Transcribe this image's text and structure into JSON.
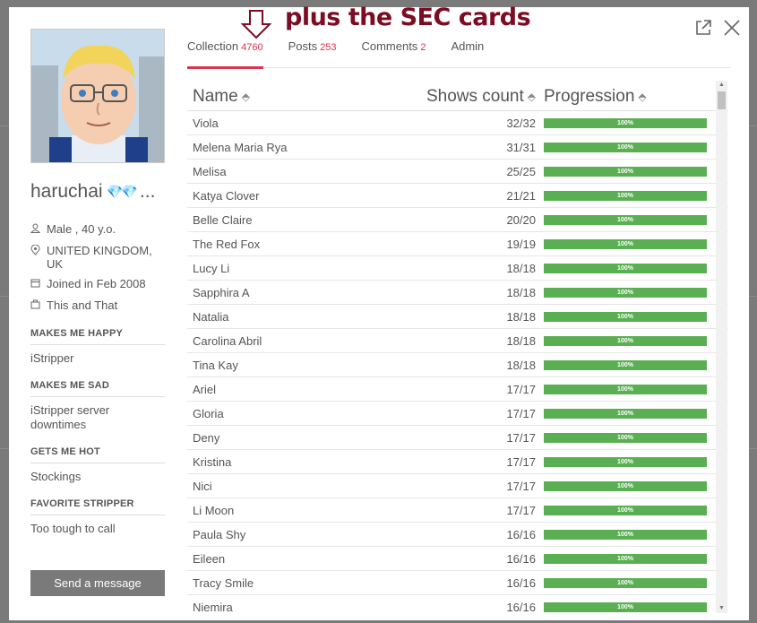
{
  "annotation": {
    "text": "plus the SEC cards"
  },
  "profile": {
    "username": "haruchai",
    "badges": "💎💎",
    "ellipsis": "...",
    "gender_age": "Male , 40 y.o.",
    "location": "UNITED KINGDOM, UK",
    "joined": "Joined in Feb 2008",
    "occupation": "This and That",
    "sections": [
      {
        "title": "MAKES ME HAPPY",
        "value": "iStripper"
      },
      {
        "title": "MAKES ME SAD",
        "value": "iStripper server downtimes"
      },
      {
        "title": "GETS ME HOT",
        "value": "Stockings"
      },
      {
        "title": "FAVORITE STRIPPER",
        "value": "Too tough to call"
      }
    ],
    "send_label": "Send a message"
  },
  "tabs": [
    {
      "label": "Collection",
      "count": "4760"
    },
    {
      "label": "Posts",
      "count": "253"
    },
    {
      "label": "Comments",
      "count": "2"
    },
    {
      "label": "Admin",
      "count": ""
    }
  ],
  "table": {
    "headers": {
      "name": "Name",
      "shows": "Shows count",
      "progression": "Progression"
    },
    "rows": [
      {
        "name": "Viola",
        "shows": "32/32",
        "progress": 100,
        "label": "100%"
      },
      {
        "name": "Melena Maria Rya",
        "shows": "31/31",
        "progress": 100,
        "label": "100%"
      },
      {
        "name": "Melisa",
        "shows": "25/25",
        "progress": 100,
        "label": "100%"
      },
      {
        "name": "Katya Clover",
        "shows": "21/21",
        "progress": 100,
        "label": "100%"
      },
      {
        "name": "Belle Claire",
        "shows": "20/20",
        "progress": 100,
        "label": "100%"
      },
      {
        "name": "The Red Fox",
        "shows": "19/19",
        "progress": 100,
        "label": "100%"
      },
      {
        "name": "Lucy Li",
        "shows": "18/18",
        "progress": 100,
        "label": "100%"
      },
      {
        "name": "Sapphira A",
        "shows": "18/18",
        "progress": 100,
        "label": "100%"
      },
      {
        "name": "Natalia",
        "shows": "18/18",
        "progress": 100,
        "label": "100%"
      },
      {
        "name": "Carolina Abril",
        "shows": "18/18",
        "progress": 100,
        "label": "100%"
      },
      {
        "name": "Tina Kay",
        "shows": "18/18",
        "progress": 100,
        "label": "100%"
      },
      {
        "name": "Ariel",
        "shows": "17/17",
        "progress": 100,
        "label": "100%"
      },
      {
        "name": "Gloria",
        "shows": "17/17",
        "progress": 100,
        "label": "100%"
      },
      {
        "name": "Deny",
        "shows": "17/17",
        "progress": 100,
        "label": "100%"
      },
      {
        "name": "Kristina",
        "shows": "17/17",
        "progress": 100,
        "label": "100%"
      },
      {
        "name": "Nici",
        "shows": "17/17",
        "progress": 100,
        "label": "100%"
      },
      {
        "name": "Li Moon",
        "shows": "17/17",
        "progress": 100,
        "label": "100%"
      },
      {
        "name": "Paula Shy",
        "shows": "16/16",
        "progress": 100,
        "label": "100%"
      },
      {
        "name": "Eileen",
        "shows": "16/16",
        "progress": 100,
        "label": "100%"
      },
      {
        "name": "Tracy Smile",
        "shows": "16/16",
        "progress": 100,
        "label": "100%"
      },
      {
        "name": "Niemira",
        "shows": "16/16",
        "progress": 100,
        "label": "100%"
      }
    ]
  },
  "colors": {
    "accent": "#d9344f",
    "progress": "#5aaf52",
    "annotation": "#7b0c23"
  }
}
